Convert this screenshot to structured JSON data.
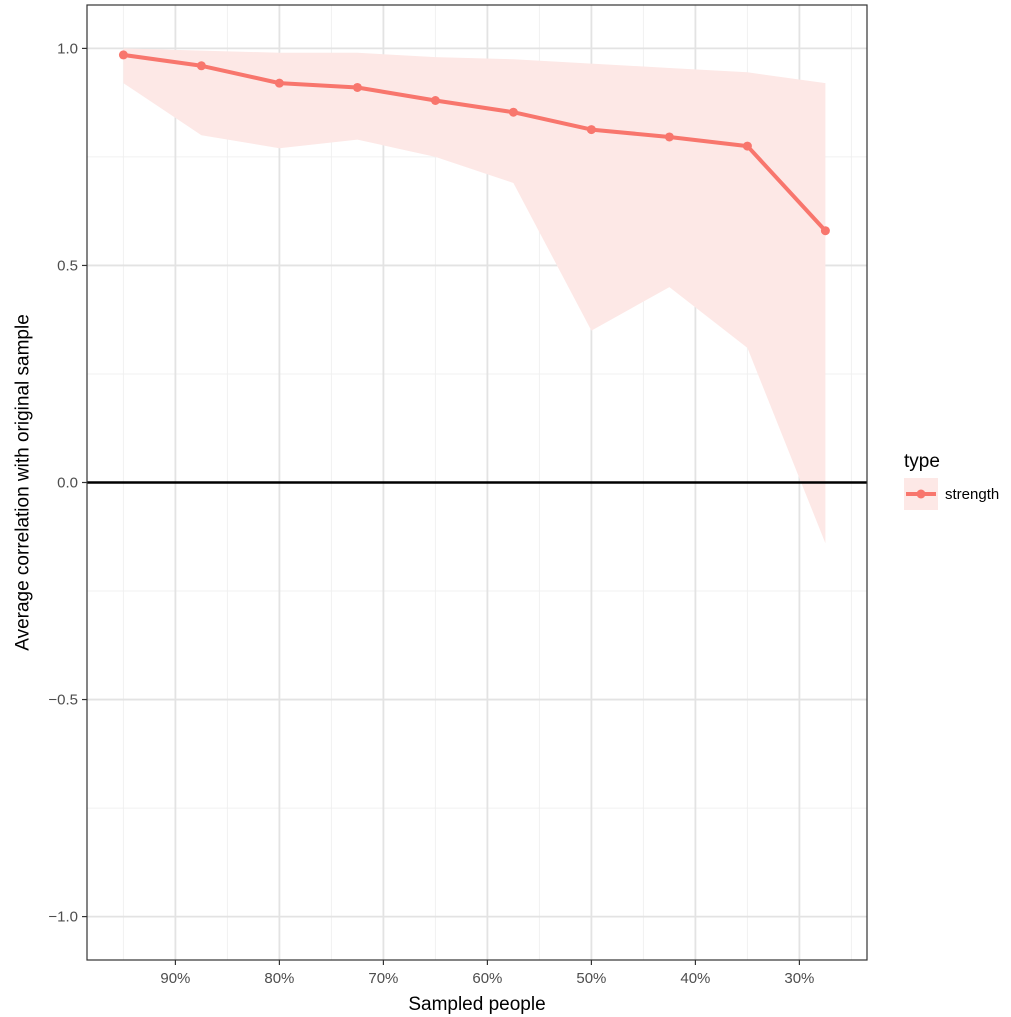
{
  "chart_data": {
    "type": "line",
    "title": "",
    "xlabel": "Sampled people",
    "ylabel": "Average correlation with original sample",
    "x_reversed": true,
    "xlim": [
      0.235,
      0.985
    ],
    "ylim": [
      -1.1,
      1.1
    ],
    "x_ticks": [
      0.9,
      0.8,
      0.7,
      0.6,
      0.5,
      0.4,
      0.3
    ],
    "x_tick_labels": [
      "90%",
      "80%",
      "70%",
      "60%",
      "50%",
      "40%",
      "30%"
    ],
    "y_ticks": [
      1.0,
      0.5,
      0.0,
      -0.5,
      -1.0
    ],
    "y_tick_labels": [
      "1.0",
      "0.5",
      "0.0",
      "−0.5",
      "−1.0"
    ],
    "grid": true,
    "reference_line_y": 0,
    "legend": {
      "title": "type",
      "position": "right"
    },
    "series": [
      {
        "name": "strength",
        "color": "#F8766D",
        "band_color": "#FDE8E6",
        "x": [
          0.95,
          0.875,
          0.8,
          0.725,
          0.65,
          0.575,
          0.5,
          0.425,
          0.35,
          0.275
        ],
        "y": [
          0.985,
          0.96,
          0.92,
          0.91,
          0.88,
          0.853,
          0.813,
          0.796,
          0.775,
          0.58
        ],
        "lower": [
          0.92,
          0.8,
          0.77,
          0.79,
          0.75,
          0.69,
          0.35,
          0.45,
          0.31,
          -0.14
        ],
        "upper": [
          1.0,
          0.995,
          0.99,
          0.99,
          0.98,
          0.975,
          0.965,
          0.955,
          0.945,
          0.92
        ]
      }
    ]
  }
}
